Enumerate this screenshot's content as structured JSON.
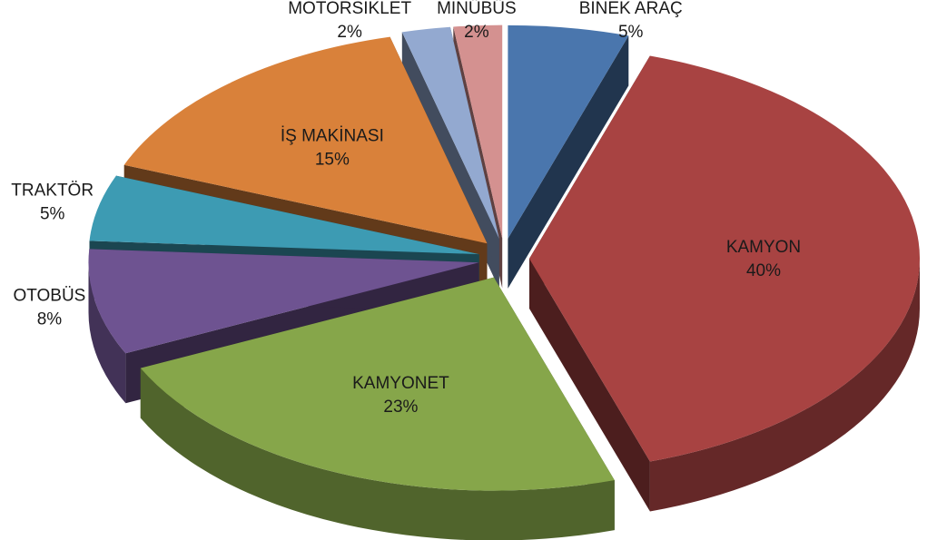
{
  "chart_data": {
    "type": "pie3d",
    "categories": [
      "BİNEK ARAÇ",
      "KAMYON",
      "KAMYONET",
      "OTOBÜS",
      "TRAKTÖR",
      "İŞ MAKİNASI",
      "MOTORSİKLET",
      "MİNÜBÜS"
    ],
    "values": [
      5,
      40,
      23,
      8,
      5,
      15,
      2,
      2
    ],
    "value_labels": [
      "5%",
      "40%",
      "23%",
      "8%",
      "5%",
      "15%",
      "2%",
      "2%"
    ],
    "colors": [
      "#4a76ad",
      "#a84342",
      "#86a64a",
      "#6e5391",
      "#3d9bb3",
      "#d9813a",
      "#93a9d0",
      "#d49190"
    ]
  }
}
